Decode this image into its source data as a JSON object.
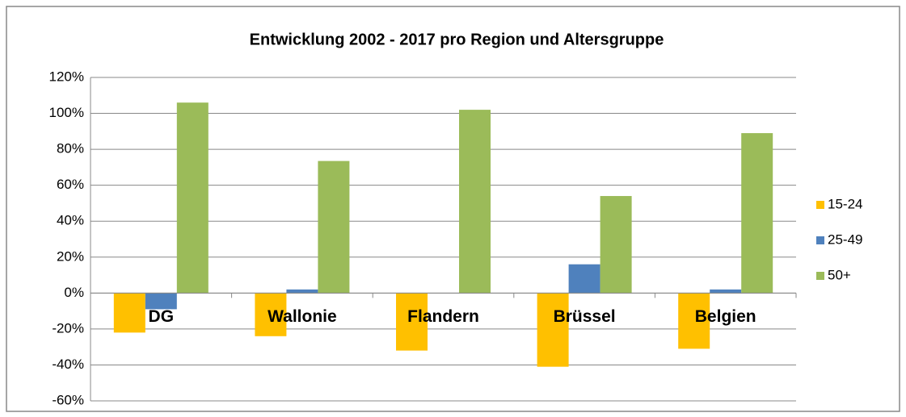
{
  "chart_data": {
    "type": "bar",
    "title": "Entwicklung 2002 - 2017 pro Region und Altersgruppe",
    "categories": [
      "DG",
      "Wallonie",
      "Flandern",
      "Brüssel",
      "Belgien"
    ],
    "series": [
      {
        "name": "15-24",
        "color": "#FFC000",
        "values": [
          -22,
          -24,
          -32,
          -41,
          -31
        ]
      },
      {
        "name": "25-49",
        "color": "#4F81BD",
        "values": [
          -9,
          2,
          0,
          16,
          2
        ]
      },
      {
        "name": "50+",
        "color": "#9BBB59",
        "values": [
          106,
          73.5,
          102,
          54,
          89
        ]
      }
    ],
    "ylim": [
      -60,
      120
    ],
    "yticks": [
      {
        "value": -60,
        "label": "-60%"
      },
      {
        "value": -40,
        "label": "-40%"
      },
      {
        "value": -20,
        "label": "-20%"
      },
      {
        "value": 0,
        "label": "0%"
      },
      {
        "value": 20,
        "label": "20%"
      },
      {
        "value": 40,
        "label": "40%"
      },
      {
        "value": 60,
        "label": "60%"
      },
      {
        "value": 80,
        "label": "80%"
      },
      {
        "value": 100,
        "label": "100%"
      },
      {
        "value": 120,
        "label": "120%"
      }
    ],
    "grid": true,
    "legend": "right"
  }
}
